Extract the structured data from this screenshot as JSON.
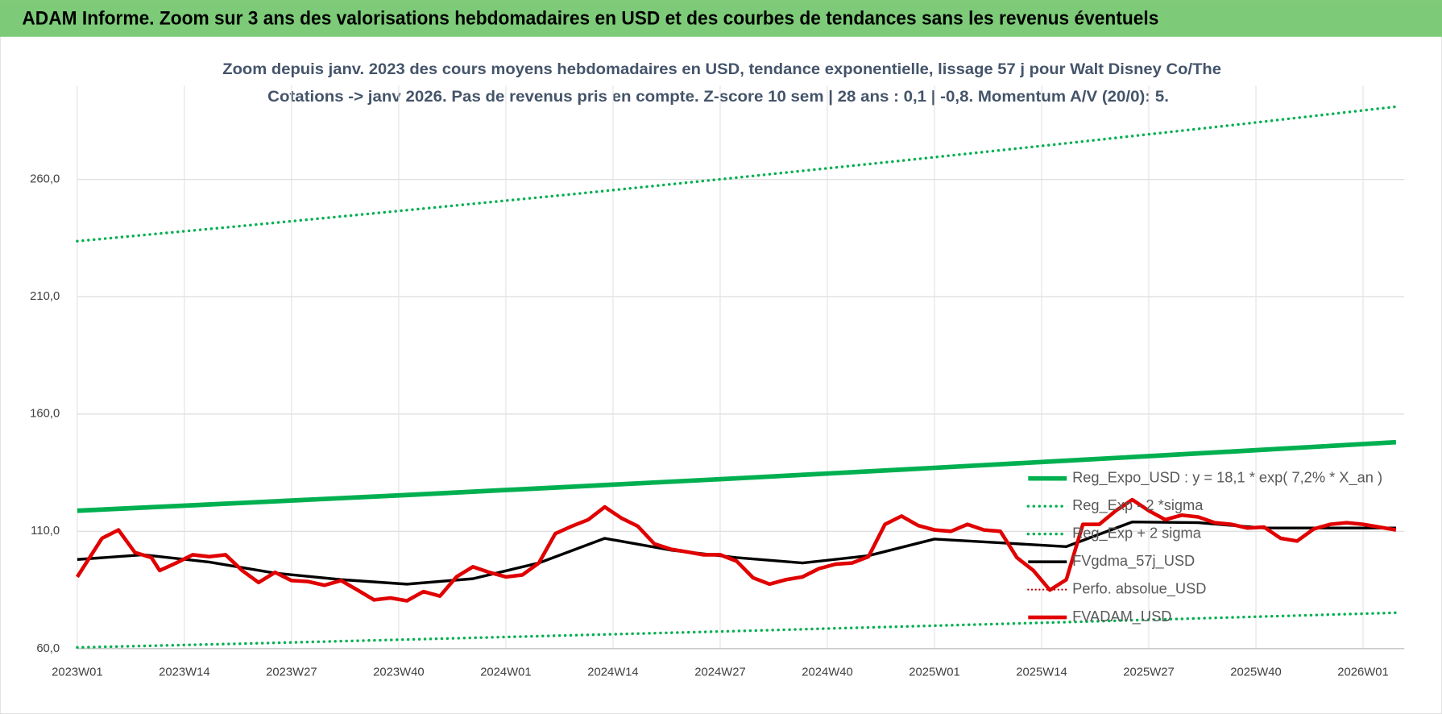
{
  "header": {
    "title": "ADAM Informe. Zoom sur 3 ans des valorisations hebdomadaires en USD et des courbes de tendances sans les revenus éventuels"
  },
  "chart_data": {
    "type": "line",
    "title": "Zoom depuis janv. 2023 des cours moyens hebdomadaires en USD, tendance exponentielle, lissage 57 j pour Walt Disney Co/The",
    "subtitle": "Cotations -> janv 2026. Pas de revenus pris en compte. Z-score 10 sem | 28 ans : 0,1 | -0,8. Momentum A/V (20/0): 5.",
    "xlim": [
      0,
      161
    ],
    "xticks": [
      {
        "value": 0,
        "label": "2023W01"
      },
      {
        "value": 13,
        "label": "2023W14"
      },
      {
        "value": 26,
        "label": "2023W27"
      },
      {
        "value": 39,
        "label": "2023W40"
      },
      {
        "value": 52,
        "label": "2024W01"
      },
      {
        "value": 65,
        "label": "2024W14"
      },
      {
        "value": 78,
        "label": "2024W27"
      },
      {
        "value": 91,
        "label": "2024W40"
      },
      {
        "value": 104,
        "label": "2025W01"
      },
      {
        "value": 117,
        "label": "2025W14"
      },
      {
        "value": 130,
        "label": "2025W27"
      },
      {
        "value": 143,
        "label": "2025W40"
      },
      {
        "value": 156,
        "label": "2026W01"
      }
    ],
    "ylim": [
      60,
      300
    ],
    "yticks": [
      {
        "value": 60,
        "label": "60,0"
      },
      {
        "value": 110,
        "label": "110,0"
      },
      {
        "value": 160,
        "label": "160,0"
      },
      {
        "value": 210,
        "label": "210,0"
      },
      {
        "value": 260,
        "label": "260,0"
      }
    ],
    "grid": true,
    "legend": "right",
    "series": [
      {
        "name": "Reg_Expo_USD : y = 18,1 * exp( 7,2% *  X_an )",
        "color": "#00b050",
        "style": "solid",
        "width": 5,
        "x": [
          0,
          20,
          40,
          60,
          80,
          100,
          120,
          140,
          160
        ],
        "values": [
          118.8,
          122.1,
          125.5,
          129.0,
          132.6,
          136.3,
          140.1,
          144.0,
          148.0
        ]
      },
      {
        "name": "Reg_Exp - 2 *sigma",
        "color": "#00b050",
        "style": "dotted",
        "width": 3,
        "x": [
          0,
          20,
          40,
          60,
          80,
          100,
          120,
          140,
          160
        ],
        "values": [
          60.5,
          62.1,
          63.9,
          65.7,
          67.5,
          69.4,
          71.3,
          73.3,
          75.3
        ]
      },
      {
        "name": "Reg_Exp + 2 sigma",
        "color": "#00b050",
        "style": "dotted",
        "width": 3,
        "x": [
          0,
          20,
          40,
          60,
          80,
          100,
          120,
          140,
          160
        ],
        "values": [
          233.7,
          240.2,
          246.9,
          253.7,
          260.8,
          268.0,
          275.4,
          283.1,
          291.0
        ]
      },
      {
        "name": "FVgdma_57j_USD",
        "color": "#000000",
        "style": "solid",
        "width": 3,
        "x": [
          0,
          8,
          16,
          24,
          32,
          40,
          48,
          56,
          64,
          72,
          80,
          88,
          96,
          104,
          112,
          120,
          128,
          136,
          144,
          152,
          160
        ],
        "values": [
          98,
          100,
          96.9,
          92.2,
          89.4,
          87.5,
          89.8,
          96.5,
          107,
          102,
          98.8,
          96.5,
          99.6,
          106.7,
          105.1,
          103.5,
          114,
          113.7,
          111.4,
          111.4,
          111.4
        ]
      },
      {
        "name": "Perfo. absolue_USD",
        "color": "#c00000",
        "style": "dotted",
        "width": 2,
        "x": [],
        "values": []
      },
      {
        "name": "FVADAM_USD",
        "color": "#e00000",
        "style": "solid",
        "width": 4,
        "x": [
          0,
          3,
          5,
          7,
          9,
          10,
          12,
          14,
          16,
          18,
          20,
          22,
          24,
          26,
          28,
          30,
          32,
          34,
          36,
          38,
          40,
          42,
          44,
          46,
          48,
          50,
          52,
          54,
          56,
          58,
          60,
          62,
          64,
          66,
          68,
          70,
          72,
          74,
          76,
          78,
          80,
          82,
          84,
          86,
          88,
          90,
          92,
          94,
          96,
          98,
          100,
          102,
          104,
          106,
          108,
          110,
          112,
          114,
          116,
          118,
          120,
          122,
          124,
          126,
          128,
          130,
          132,
          134,
          136,
          138,
          140,
          142,
          144,
          146,
          148,
          150,
          152,
          154,
          156,
          158,
          160
        ],
        "values": [
          90.6,
          107,
          110.6,
          101,
          98.8,
          93.3,
          96.5,
          100,
          99.2,
          100,
          93.3,
          88.2,
          92.5,
          89,
          88.6,
          87,
          89,
          85,
          80.8,
          81.6,
          80.4,
          84.3,
          82.4,
          90.6,
          94.9,
          92.5,
          90.6,
          91.4,
          96.5,
          109,
          112.2,
          115,
          120.4,
          115.7,
          112.2,
          104.7,
          102.4,
          101.2,
          100,
          100,
          97.3,
          90.2,
          87.5,
          89.4,
          90.6,
          94.1,
          96,
          96.5,
          99.2,
          113,
          116.5,
          112.5,
          110.6,
          110,
          113,
          110.6,
          110,
          98.8,
          93.3,
          85,
          89.4,
          113,
          113,
          118.8,
          123.5,
          118.8,
          115,
          116.9,
          116.1,
          113.7,
          113,
          111.4,
          111.8,
          107,
          105.9,
          111,
          113,
          113.7,
          113,
          111.8,
          110.6
        ]
      }
    ]
  }
}
